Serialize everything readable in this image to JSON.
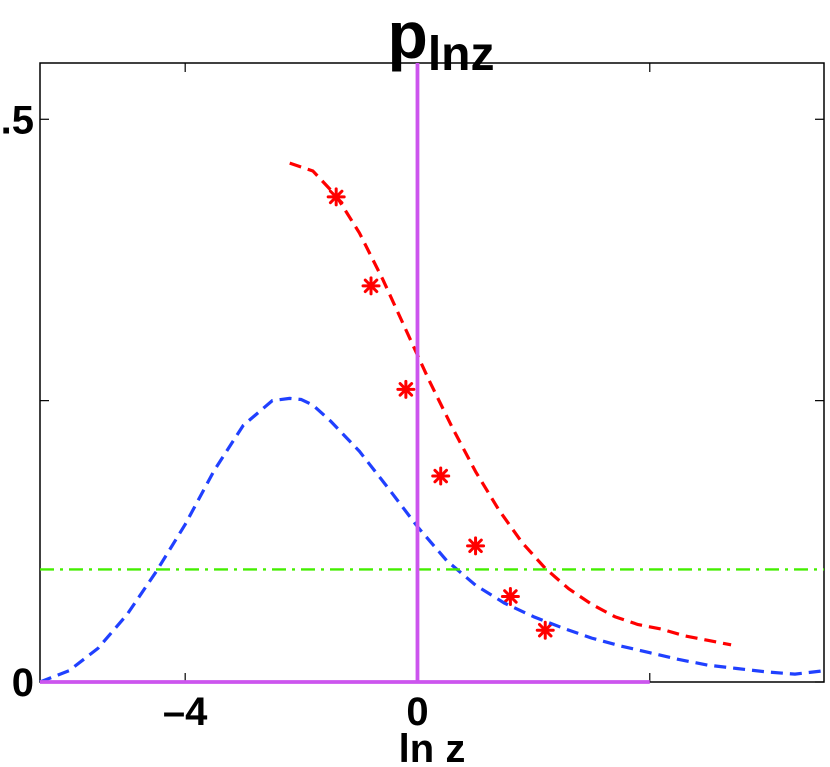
{
  "chart_data": {
    "type": "line",
    "title": {
      "main": "p",
      "subscript": "lnz"
    },
    "xlabel": "ln z",
    "ylabel": "",
    "xlim": [
      -6.5,
      7.0
    ],
    "ylim": [
      0,
      0.55
    ],
    "xticks": [
      {
        "value": -4,
        "label": "–4"
      },
      {
        "value": 0,
        "label": "0"
      }
    ],
    "yticks": [
      {
        "value": 0,
        "label": "0"
      },
      {
        "value": 0.5,
        "label": ".5"
      }
    ],
    "minor_yticks": [
      0.25
    ],
    "minor_xticks": [
      4
    ],
    "grid": false,
    "legend": "none",
    "series": [
      {
        "style": "dashed",
        "color": "#ff0000",
        "x": [
          -2.2,
          -1.8,
          -1.4,
          -1.0,
          -0.6,
          -0.2,
          0.2,
          0.6,
          1.0,
          1.4,
          1.8,
          2.2,
          2.6,
          3.0,
          3.4,
          3.8,
          4.2,
          4.6,
          5.0,
          5.4
        ],
        "y": [
          0.461,
          0.454,
          0.432,
          0.399,
          0.358,
          0.313,
          0.268,
          0.226,
          0.187,
          0.153,
          0.124,
          0.101,
          0.083,
          0.069,
          0.058,
          0.051,
          0.047,
          0.041,
          0.037,
          0.033
        ]
      },
      {
        "style": "markers",
        "marker": "asterisk",
        "color": "#ff0000",
        "x": [
          -1.4,
          -0.8,
          -0.2,
          0.4,
          1.0,
          1.6,
          2.2
        ],
        "y": [
          0.431,
          0.352,
          0.26,
          0.183,
          0.121,
          0.076,
          0.046
        ]
      },
      {
        "style": "dashed",
        "color": "#2040ff",
        "x": [
          -6.5,
          -6.0,
          -5.5,
          -5.0,
          -4.5,
          -4.0,
          -3.5,
          -3.0,
          -2.5,
          -2.2,
          -2.0,
          -1.8,
          -1.5,
          -1.0,
          -0.5,
          0.0,
          0.5,
          1.0,
          1.5,
          2.0,
          2.5,
          3.0,
          3.5,
          4.0,
          4.5,
          5.0,
          5.5,
          6.0,
          6.5,
          7.0
        ],
        "y": [
          0.0,
          0.01,
          0.03,
          0.06,
          0.098,
          0.14,
          0.188,
          0.228,
          0.25,
          0.252,
          0.251,
          0.246,
          0.232,
          0.205,
          0.172,
          0.138,
          0.108,
          0.086,
          0.07,
          0.058,
          0.048,
          0.039,
          0.032,
          0.026,
          0.02,
          0.015,
          0.012,
          0.009,
          0.007,
          0.01
        ]
      },
      {
        "style": "dashdot",
        "color": "#44ee00",
        "x": [
          -6.5,
          7.0
        ],
        "y": [
          0.1,
          0.1
        ]
      },
      {
        "style": "solid",
        "color": "#cc55ee",
        "x": [
          0,
          0
        ],
        "y": [
          0,
          0.55
        ]
      },
      {
        "style": "solid",
        "color": "#cc55ee",
        "x": [
          -6.5,
          4.0
        ],
        "y": [
          0,
          0
        ]
      }
    ]
  }
}
